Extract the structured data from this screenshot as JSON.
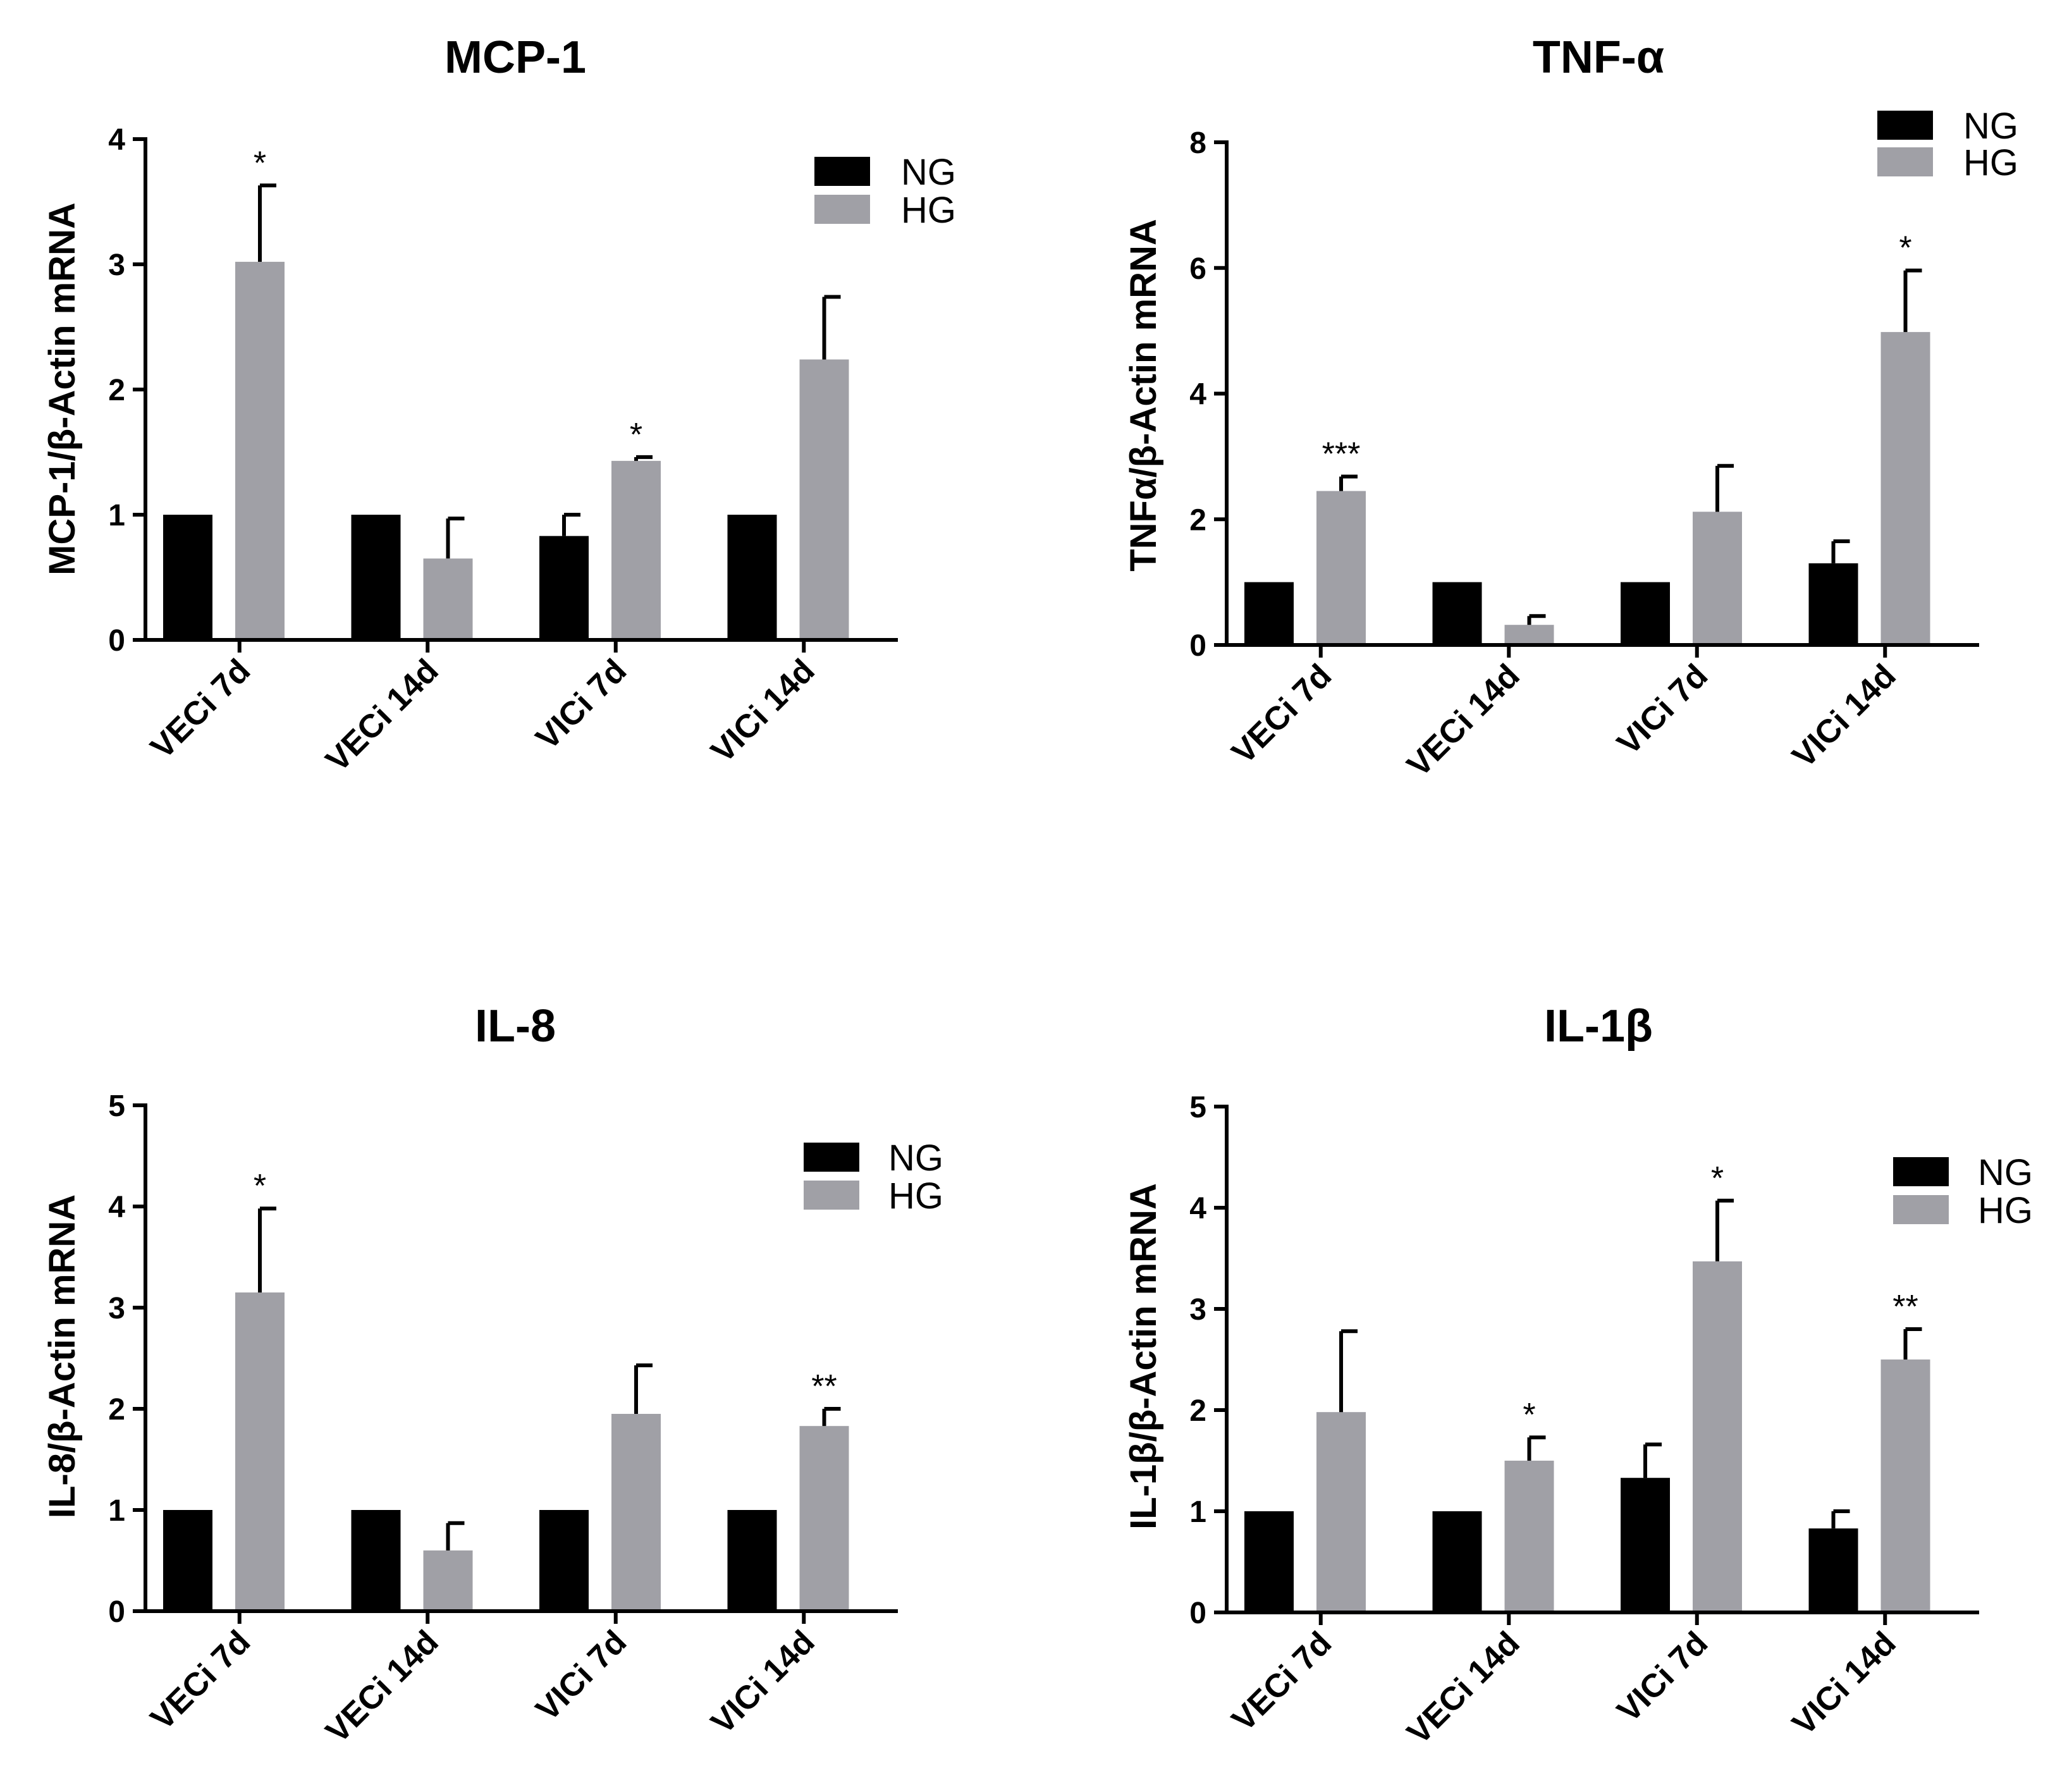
{
  "chart_data": [
    {
      "type": "bar",
      "title": "MCP-1",
      "xlabel": "",
      "ylabel": "MCP-1/β-Actin mRNA",
      "ylim": [
        0,
        4
      ],
      "yticks": [
        "0",
        "1",
        "2",
        "3",
        "4"
      ],
      "categories": [
        "VECi 7d",
        "VECi 14d",
        "VICi 7d",
        "VICi 14d"
      ],
      "series": [
        {
          "name": "NG",
          "color": "#000000",
          "values": [
            1.0,
            1.0,
            0.83,
            1.0
          ],
          "errors": [
            0,
            0,
            0.17,
            0
          ]
        },
        {
          "name": "HG",
          "color": "#a0a0a6",
          "values": [
            3.02,
            0.65,
            1.43,
            2.24
          ],
          "errors": [
            0.61,
            0.32,
            0.03,
            0.5
          ]
        }
      ],
      "significance": [
        {
          "category": 0,
          "series": 1,
          "label": "*"
        },
        {
          "category": 2,
          "series": 1,
          "label": "*"
        }
      ],
      "legend": "top-right"
    },
    {
      "type": "bar",
      "title": "TNF-α",
      "xlabel": "",
      "ylabel": "TNFα/β-Actin mRNA",
      "ylim": [
        0,
        8
      ],
      "yticks": [
        "0",
        "2",
        "4",
        "6",
        "8"
      ],
      "categories": [
        "VECi 7d",
        "VECi 14d",
        "VICi 7d",
        "VICi 14d"
      ],
      "series": [
        {
          "name": "NG",
          "color": "#000000",
          "values": [
            1.0,
            1.0,
            1.0,
            1.3
          ],
          "errors": [
            0,
            0,
            0,
            0.35
          ]
        },
        {
          "name": "HG",
          "color": "#a0a0a6",
          "values": [
            2.45,
            0.32,
            2.12,
            4.98
          ],
          "errors": [
            0.23,
            0.14,
            0.73,
            0.98
          ]
        }
      ],
      "significance": [
        {
          "category": 0,
          "series": 1,
          "label": "***"
        },
        {
          "category": 3,
          "series": 1,
          "label": "*"
        }
      ],
      "legend": "top-right"
    },
    {
      "type": "bar",
      "title": "IL-8",
      "xlabel": "",
      "ylabel": "IL-8/β-Actin mRNA",
      "ylim": [
        0,
        5
      ],
      "yticks": [
        "0",
        "1",
        "2",
        "3",
        "4",
        "5"
      ],
      "categories": [
        "VECi 7d",
        "VECi 14d",
        "VICi 7d",
        "VICi 14d"
      ],
      "series": [
        {
          "name": "NG",
          "color": "#000000",
          "values": [
            1.0,
            1.0,
            1.0,
            1.0
          ],
          "errors": [
            0,
            0,
            0,
            0
          ]
        },
        {
          "name": "HG",
          "color": "#a0a0a6",
          "values": [
            3.15,
            0.6,
            1.95,
            1.83
          ],
          "errors": [
            0.83,
            0.27,
            0.48,
            0.17
          ]
        }
      ],
      "significance": [
        {
          "category": 0,
          "series": 1,
          "label": "*"
        },
        {
          "category": 3,
          "series": 1,
          "label": "**"
        }
      ],
      "legend": "top-right"
    },
    {
      "type": "bar",
      "title": "IL-1β",
      "xlabel": "",
      "ylabel": "IL-1β/β-Actin mRNA",
      "ylim": [
        0,
        5
      ],
      "yticks": [
        "0",
        "1",
        "2",
        "3",
        "4",
        "5"
      ],
      "categories": [
        "VECi 7d",
        "VECi 14d",
        "VICi 7d",
        "VICi 14d"
      ],
      "series": [
        {
          "name": "NG",
          "color": "#000000",
          "values": [
            1.0,
            1.0,
            1.33,
            0.83
          ],
          "errors": [
            0,
            0,
            0.33,
            0.17
          ]
        },
        {
          "name": "HG",
          "color": "#a0a0a6",
          "values": [
            1.98,
            1.5,
            3.47,
            2.5
          ],
          "errors": [
            0.8,
            0.23,
            0.6,
            0.3
          ]
        }
      ],
      "significance": [
        {
          "category": 1,
          "series": 1,
          "label": "*"
        },
        {
          "category": 2,
          "series": 1,
          "label": "*"
        },
        {
          "category": 3,
          "series": 1,
          "label": "**"
        }
      ],
      "legend": "top-right"
    }
  ]
}
